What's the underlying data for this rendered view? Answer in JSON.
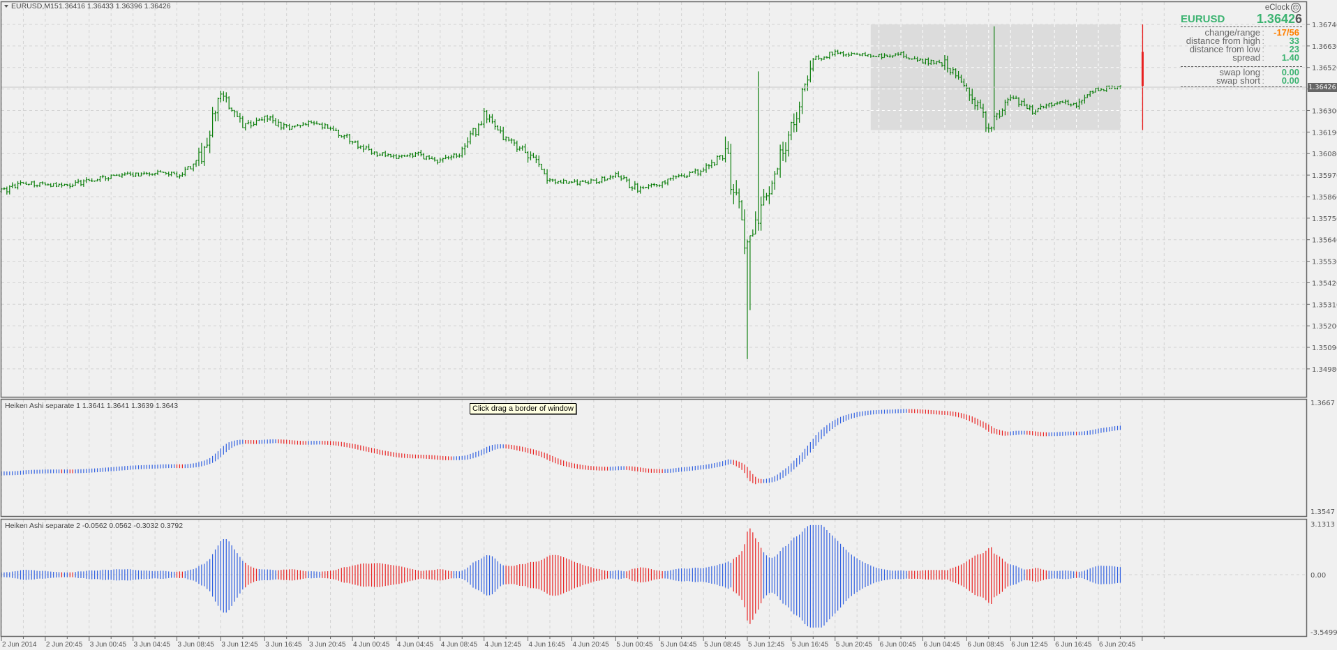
{
  "header": {
    "symbol_timeframe": "EURUSD,M15",
    "ohlc": "1.36416 1.36433 1.36396 1.36426",
    "menu_icon": "triangle-down-icon"
  },
  "info_panel": {
    "title": "eClock",
    "title_icon": "sad-face-icon",
    "symbol": "EURUSD",
    "price_main": "1.3642",
    "price_last_digit": "6",
    "rows": [
      {
        "label": "change/range",
        "value": "-17/56",
        "color": "#ff8000"
      },
      {
        "label": "distance from high",
        "value": "33",
        "color": "#3cb371"
      },
      {
        "label": "distance from low",
        "value": "23",
        "color": "#3cb371"
      },
      {
        "label": "spread",
        "value": "1.40",
        "color": "#3cb371"
      }
    ],
    "swap_rows": [
      {
        "label": "swap long",
        "value": "0.00",
        "color": "#3cb371"
      },
      {
        "label": "swap short",
        "value": "0.00",
        "color": "#3cb371"
      }
    ],
    "colon": ":"
  },
  "current_price_tag": "1.36426",
  "tooltip": "Click  drag a border of window",
  "colors": {
    "background": "#f0f0f0",
    "grid": "#d2d2d2",
    "bar": "#0a7d0a",
    "ha_up": "#2f5fe0",
    "ha_down": "#e82020",
    "range_box": "#dcdcdc",
    "range_line": "#e82020"
  },
  "chart_data": [
    {
      "type": "ohlc",
      "name_printed": "EURUSD,M15",
      "timeframe_minutes": 15,
      "first_bar": "2 Jun 16:45",
      "ylim": [
        1.3498,
        1.3674
      ],
      "yticks": [
        "1.36740",
        "1.36630",
        "1.36520",
        "1.36410",
        "1.36300",
        "1.36190",
        "1.36080",
        "1.35970",
        "1.35860",
        "1.35750",
        "1.35640",
        "1.35530",
        "1.35420",
        "1.35310",
        "1.35200",
        "1.35090",
        "1.34980"
      ],
      "close_every_2h": [
        1.35886,
        1.3593,
        1.35921,
        1.35917,
        1.35943,
        1.35965,
        1.35973,
        1.35982,
        1.35973,
        1.36039,
        1.36387,
        1.36213,
        1.36265,
        1.36213,
        1.36235,
        1.36213,
        1.36139,
        1.36082,
        1.3606,
        1.36074,
        1.36039,
        1.36082,
        1.36278,
        1.36156,
        1.36082,
        1.35943,
        1.3593,
        1.35938,
        1.35965,
        1.35899,
        1.3593,
        1.35965,
        1.35995,
        1.36082,
        1.35603,
        1.35908,
        1.36213,
        1.36561,
        1.36596,
        1.36583,
        1.36579,
        1.36588,
        1.36553,
        1.3654,
        1.36409,
        1.36213,
        1.36365,
        1.363,
        1.36344,
        1.36335,
        1.36409,
        1.36426
      ],
      "extremes": [
        {
          "time": "5 Jun 12:45",
          "low": 1.3503
        },
        {
          "time": "5 Jun 13:45",
          "high": 1.365
        },
        {
          "time": "6 Jun 11:15",
          "high": 1.3673
        }
      ],
      "day_range_box": {
        "from": "6 Jun 00:00",
        "to": "6 Jun 22:45",
        "high": 1.3674,
        "low": 1.362
      },
      "last_price": 1.36426,
      "grid": true
    },
    {
      "type": "histogram",
      "label": "Heiken Ashi separate 1 1.3641 1.3641 1.3639 1.3643",
      "ylim": [
        1.3547,
        1.3667
      ],
      "yticks": [
        "1.3667",
        "1.3547"
      ]
    },
    {
      "type": "histogram",
      "label": "Heiken Ashi separate 2 -0.0562 0.0562 -0.3032 0.3792",
      "ylim": [
        -3.5499,
        3.1313
      ],
      "yticks": [
        "3.1313",
        "0.00",
        "-3.5499"
      ]
    }
  ],
  "x_axis": {
    "labels": [
      "2 Jun 2014",
      "2 Jun 20:45",
      "3 Jun 00:45",
      "3 Jun 04:45",
      "3 Jun 08:45",
      "3 Jun 12:45",
      "3 Jun 16:45",
      "3 Jun 20:45",
      "4 Jun 00:45",
      "4 Jun 04:45",
      "4 Jun 08:45",
      "4 Jun 12:45",
      "4 Jun 16:45",
      "4 Jun 20:45",
      "5 Jun 00:45",
      "5 Jun 04:45",
      "5 Jun 08:45",
      "5 Jun 12:45",
      "5 Jun 16:45",
      "5 Jun 20:45",
      "6 Jun 00:45",
      "6 Jun 04:45",
      "6 Jun 08:45",
      "6 Jun 12:45",
      "6 Jun 16:45",
      "6 Jun 20:45"
    ]
  }
}
